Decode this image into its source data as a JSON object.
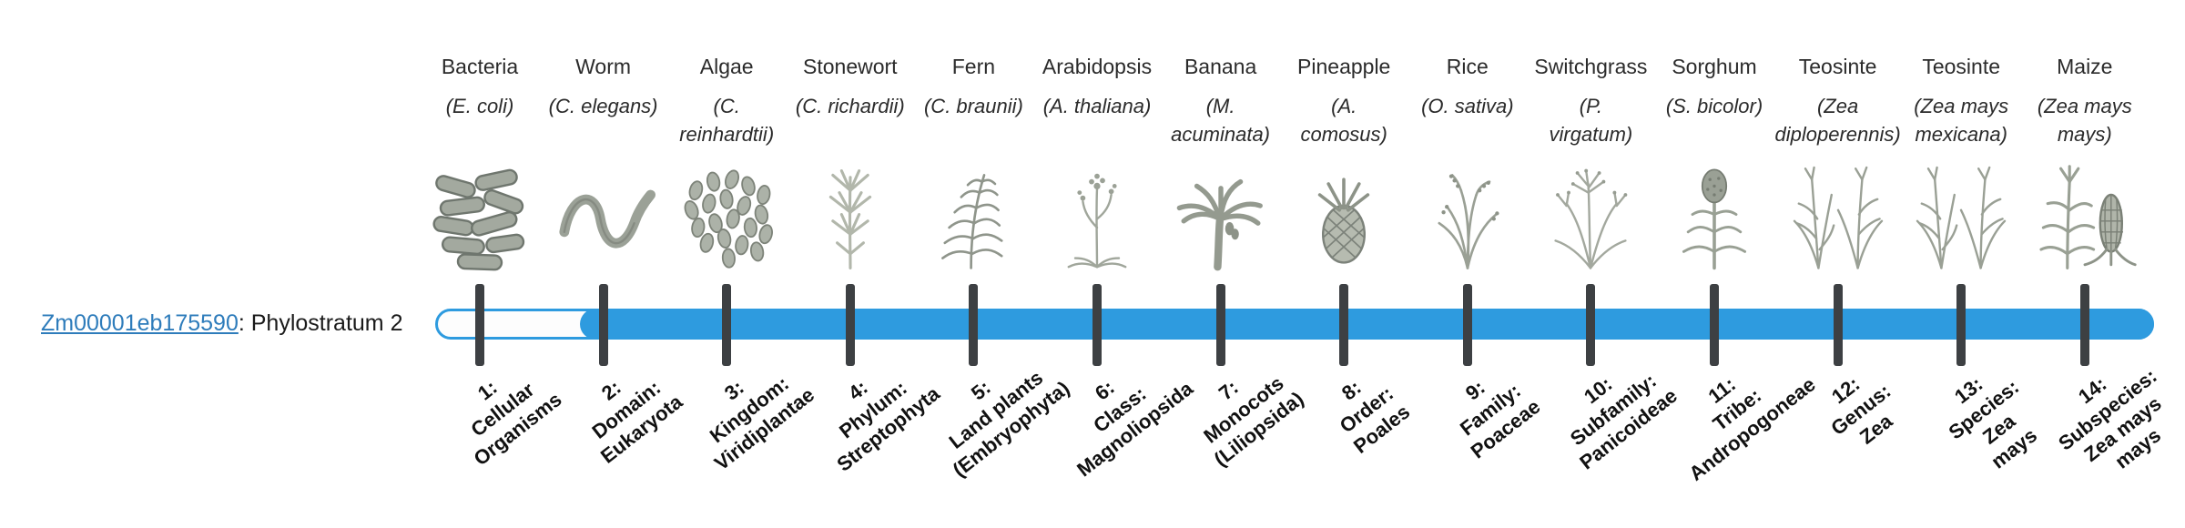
{
  "gene": {
    "id": "Zm00001eb175590",
    "suffix": ": Phylostratum 2",
    "phylostratum": 2
  },
  "bar": {
    "fill_color": "#2E9BDF",
    "tick_color": "#3d4043"
  },
  "link_color": "#2e7cbb",
  "organisms": [
    {
      "common": "Bacteria",
      "sci": [
        "(E. coli)"
      ],
      "icon": "bacteria-icon",
      "stratum": [
        "1:",
        "Cellular",
        "Organisms"
      ]
    },
    {
      "common": "Worm",
      "sci": [
        "(C. elegans)"
      ],
      "icon": "worm-icon",
      "stratum": [
        "2:",
        "Domain:",
        "Eukaryota"
      ]
    },
    {
      "common": "Algae",
      "sci": [
        "(C.",
        "reinhardtii)"
      ],
      "icon": "algae-icon",
      "stratum": [
        "3:",
        "Kingdom:",
        "Viridiplantae"
      ]
    },
    {
      "common": "Stonewort",
      "sci": [
        "(C. richardii)"
      ],
      "icon": "stonewort-icon",
      "stratum": [
        "4:",
        "Phylum:",
        "Streptophyta"
      ]
    },
    {
      "common": "Fern",
      "sci": [
        "(C. braunii)"
      ],
      "icon": "fern-icon",
      "stratum": [
        "5:",
        "Land plants",
        "(Embryophyta)"
      ]
    },
    {
      "common": "Arabidopsis",
      "sci": [
        "(A. thaliana)"
      ],
      "icon": "arabidopsis-icon",
      "stratum": [
        "6:",
        "Class:",
        "Magnoliopsida"
      ]
    },
    {
      "common": "Banana",
      "sci": [
        "(M.",
        "acuminata)"
      ],
      "icon": "banana-icon",
      "stratum": [
        "7:",
        "Monocots",
        "(Liliopsida)"
      ]
    },
    {
      "common": "Pineapple",
      "sci": [
        "(A.",
        "comosus)"
      ],
      "icon": "pineapple-icon",
      "stratum": [
        "8:",
        "Order:",
        "Poales"
      ]
    },
    {
      "common": "Rice",
      "sci": [
        "(O. sativa)"
      ],
      "icon": "rice-icon",
      "stratum": [
        "9:",
        "Family:",
        "Poaceae"
      ]
    },
    {
      "common": "Switchgrass",
      "sci": [
        "(P.",
        "virgatum)"
      ],
      "icon": "switchgrass-icon",
      "stratum": [
        "10:",
        "Subfamily:",
        "Panicoideae"
      ]
    },
    {
      "common": "Sorghum",
      "sci": [
        "(S. bicolor)"
      ],
      "icon": "sorghum-icon",
      "stratum": [
        "11:",
        "Tribe:",
        "Andropogoneae"
      ]
    },
    {
      "common": "Teosinte",
      "sci": [
        "(Zea",
        "diploperennis)"
      ],
      "icon": "teosinte-icon",
      "stratum": [
        "12:",
        "Genus:",
        "Zea"
      ]
    },
    {
      "common": "Teosinte",
      "sci": [
        "(Zea mays",
        "mexicana)"
      ],
      "icon": "teosinte-icon",
      "stratum": [
        "13:",
        "Species:",
        "Zea",
        "mays"
      ]
    },
    {
      "common": "Maize",
      "sci": [
        "(Zea mays",
        "mays)"
      ],
      "icon": "maize-icon",
      "stratum": [
        "14:",
        "Subspecies:",
        "Zea mays",
        "mays"
      ]
    }
  ]
}
